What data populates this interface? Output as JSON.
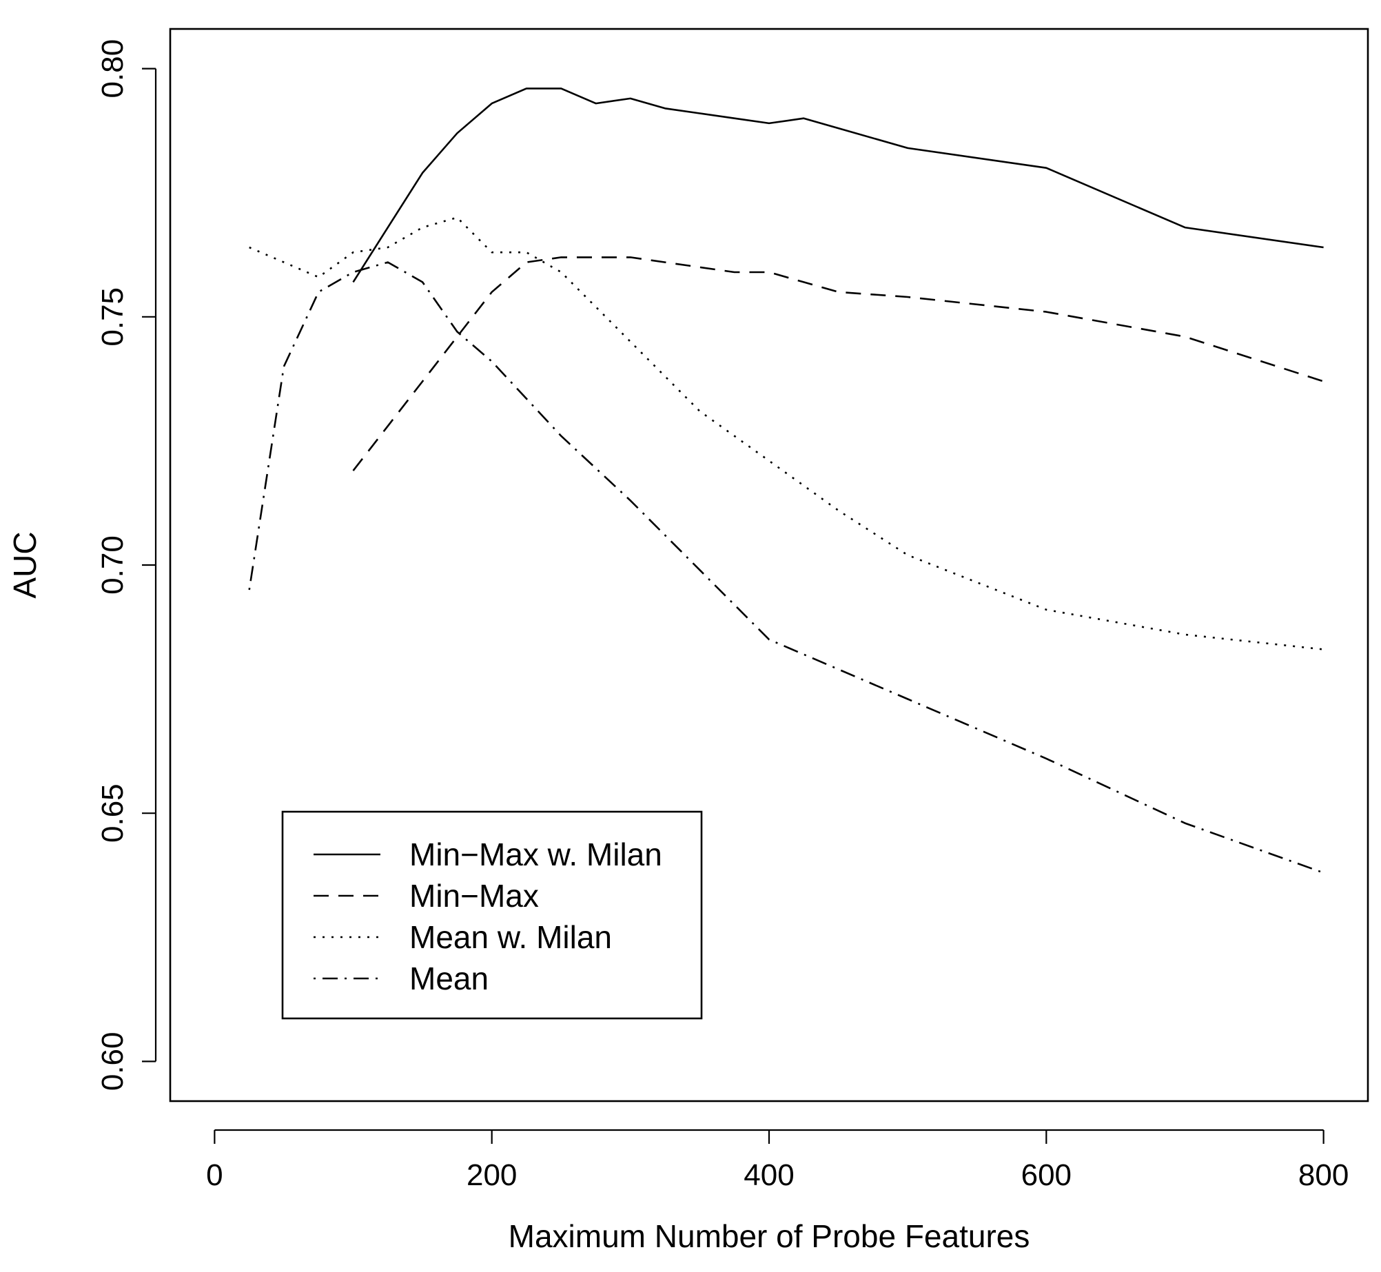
{
  "chart_data": {
    "type": "line",
    "title": "",
    "xlabel": "Maximum Number of Probe Features",
    "ylabel": "AUC",
    "xlim": [
      -32,
      832
    ],
    "ylim": [
      0.592,
      0.808
    ],
    "xticks": [
      0,
      200,
      400,
      600,
      800
    ],
    "xtick_labels": [
      "0",
      "200",
      "400",
      "600",
      "800"
    ],
    "yticks": [
      0.6,
      0.65,
      0.7,
      0.75,
      0.8
    ],
    "ytick_labels": [
      "0.60",
      "0.65",
      "0.70",
      "0.75",
      "0.80"
    ],
    "grid": false,
    "legend_position": "bottom-left",
    "series": [
      {
        "name": "Min−Max w. Milan",
        "dash": "solid",
        "points": [
          [
            100,
            0.757
          ],
          [
            125,
            0.768
          ],
          [
            150,
            0.779
          ],
          [
            175,
            0.787
          ],
          [
            200,
            0.793
          ],
          [
            225,
            0.796
          ],
          [
            250,
            0.796
          ],
          [
            275,
            0.793
          ],
          [
            300,
            0.794
          ],
          [
            325,
            0.792
          ],
          [
            350,
            0.791
          ],
          [
            375,
            0.79
          ],
          [
            400,
            0.789
          ],
          [
            425,
            0.79
          ],
          [
            450,
            0.788
          ],
          [
            500,
            0.784
          ],
          [
            600,
            0.78
          ],
          [
            700,
            0.768
          ],
          [
            800,
            0.764
          ]
        ]
      },
      {
        "name": "Min−Max",
        "dash": "dashed",
        "points": [
          [
            100,
            0.719
          ],
          [
            125,
            0.728
          ],
          [
            150,
            0.737
          ],
          [
            175,
            0.746
          ],
          [
            200,
            0.755
          ],
          [
            225,
            0.761
          ],
          [
            250,
            0.762
          ],
          [
            275,
            0.762
          ],
          [
            300,
            0.762
          ],
          [
            325,
            0.761
          ],
          [
            350,
            0.76
          ],
          [
            375,
            0.759
          ],
          [
            400,
            0.759
          ],
          [
            425,
            0.757
          ],
          [
            450,
            0.755
          ],
          [
            500,
            0.754
          ],
          [
            600,
            0.751
          ],
          [
            700,
            0.746
          ],
          [
            800,
            0.737
          ]
        ]
      },
      {
        "name": "Mean w. Milan",
        "dash": "dotted",
        "points": [
          [
            25,
            0.764
          ],
          [
            50,
            0.761
          ],
          [
            75,
            0.758
          ],
          [
            100,
            0.763
          ],
          [
            125,
            0.764
          ],
          [
            150,
            0.768
          ],
          [
            175,
            0.77
          ],
          [
            200,
            0.763
          ],
          [
            225,
            0.763
          ],
          [
            250,
            0.759
          ],
          [
            275,
            0.752
          ],
          [
            300,
            0.745
          ],
          [
            350,
            0.731
          ],
          [
            400,
            0.721
          ],
          [
            450,
            0.711
          ],
          [
            500,
            0.702
          ],
          [
            600,
            0.691
          ],
          [
            700,
            0.686
          ],
          [
            800,
            0.683
          ]
        ]
      },
      {
        "name": "Mean",
        "dash": "dotdash",
        "points": [
          [
            25,
            0.695
          ],
          [
            50,
            0.74
          ],
          [
            75,
            0.755
          ],
          [
            100,
            0.759
          ],
          [
            125,
            0.761
          ],
          [
            150,
            0.757
          ],
          [
            175,
            0.747
          ],
          [
            200,
            0.741
          ],
          [
            250,
            0.726
          ],
          [
            300,
            0.713
          ],
          [
            350,
            0.699
          ],
          [
            400,
            0.685
          ],
          [
            500,
            0.673
          ],
          [
            600,
            0.661
          ],
          [
            700,
            0.648
          ],
          [
            800,
            0.638
          ]
        ]
      }
    ]
  }
}
